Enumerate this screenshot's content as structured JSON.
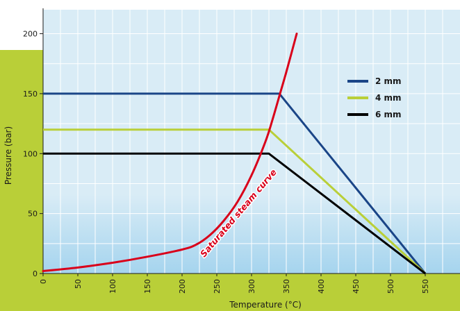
{
  "chart_data": {
    "type": "line",
    "xlabel": "Temperature (°C)",
    "ylabel": "Pressure (bar)",
    "xlim": [
      0,
      600
    ],
    "ylim": [
      0,
      220
    ],
    "x_ticks": [
      0,
      50,
      100,
      150,
      200,
      250,
      300,
      350,
      400,
      450,
      500,
      550
    ],
    "y_ticks": [
      0,
      50,
      100,
      150,
      200
    ],
    "grid": true,
    "legend_position": "top-right",
    "series": [
      {
        "name": "2 mm",
        "color": "#1a4587",
        "points": [
          [
            0,
            150
          ],
          [
            340,
            150
          ],
          [
            550,
            0
          ]
        ]
      },
      {
        "name": "4 mm",
        "color": "#b9cf38",
        "points": [
          [
            0,
            120
          ],
          [
            325,
            120
          ],
          [
            550,
            0
          ]
        ]
      },
      {
        "name": "6 mm",
        "color": "#000000",
        "points": [
          [
            0,
            100
          ],
          [
            325,
            100
          ],
          [
            550,
            0
          ]
        ]
      }
    ],
    "saturated_steam": {
      "label": "Saturated steam curve",
      "color": "#d9001a",
      "points": [
        [
          0,
          2
        ],
        [
          50,
          5
        ],
        [
          100,
          9
        ],
        [
          150,
          14
        ],
        [
          200,
          20
        ],
        [
          220,
          24
        ],
        [
          240,
          32
        ],
        [
          260,
          44
        ],
        [
          280,
          60
        ],
        [
          300,
          82
        ],
        [
          320,
          110
        ],
        [
          330,
          128
        ],
        [
          340,
          148
        ],
        [
          350,
          168
        ],
        [
          365,
          200
        ]
      ]
    },
    "background": {
      "plot": "#d9ecf6",
      "gridline": "#ffffff",
      "gradient_bottom": "#a5d4ee",
      "frame": "#b9cf38"
    }
  }
}
